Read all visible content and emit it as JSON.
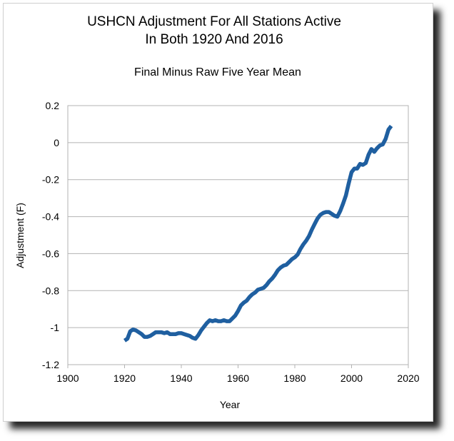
{
  "chart_data": {
    "type": "line",
    "title_lines": [
      "USHCN Adjustment For All Stations Active",
      "In Both 1920 And 2016"
    ],
    "subtitle": "Final Minus Raw Five Year Mean",
    "xlabel": "Year",
    "ylabel": "Adjustment (F)",
    "xlim": [
      1900,
      2020
    ],
    "ylim": [
      -1.2,
      0.2
    ],
    "xticks": [
      1900,
      1920,
      1940,
      1960,
      1980,
      2000,
      2020
    ],
    "yticks": [
      0.2,
      0,
      -0.2,
      -0.4,
      -0.6,
      -0.8,
      -1,
      -1.2
    ],
    "ytick_labels": [
      "0.2",
      "0",
      "-0.2",
      "-0.4",
      "-0.6",
      "-0.8",
      "-1",
      "-1.2"
    ],
    "grid": true,
    "legend": false,
    "series": [
      {
        "color": "#1f5fa0",
        "x": [
          1920,
          1921,
          1922,
          1923,
          1924,
          1925,
          1926,
          1927,
          1928,
          1929,
          1930,
          1931,
          1932,
          1933,
          1934,
          1935,
          1936,
          1937,
          1938,
          1939,
          1940,
          1941,
          1942,
          1943,
          1944,
          1945,
          1946,
          1947,
          1948,
          1949,
          1950,
          1951,
          1952,
          1953,
          1954,
          1955,
          1956,
          1957,
          1958,
          1959,
          1960,
          1961,
          1962,
          1963,
          1964,
          1965,
          1966,
          1967,
          1968,
          1969,
          1970,
          1971,
          1972,
          1973,
          1974,
          1975,
          1976,
          1977,
          1978,
          1979,
          1980,
          1981,
          1982,
          1983,
          1984,
          1985,
          1986,
          1987,
          1988,
          1989,
          1990,
          1991,
          1992,
          1993,
          1994,
          1995,
          1996,
          1997,
          1998,
          1999,
          2000,
          2001,
          2002,
          2003,
          2004,
          2005,
          2006,
          2007,
          2008,
          2009,
          2010,
          2011,
          2012,
          2013,
          2014
        ],
        "y": [
          -1.07,
          -1.06,
          -1.02,
          -1.01,
          -1.015,
          -1.025,
          -1.035,
          -1.05,
          -1.05,
          -1.045,
          -1.035,
          -1.025,
          -1.025,
          -1.025,
          -1.03,
          -1.025,
          -1.035,
          -1.035,
          -1.035,
          -1.03,
          -1.03,
          -1.035,
          -1.04,
          -1.045,
          -1.055,
          -1.06,
          -1.04,
          -1.015,
          -0.995,
          -0.975,
          -0.96,
          -0.965,
          -0.96,
          -0.965,
          -0.965,
          -0.96,
          -0.965,
          -0.965,
          -0.95,
          -0.935,
          -0.91,
          -0.88,
          -0.865,
          -0.855,
          -0.835,
          -0.82,
          -0.81,
          -0.795,
          -0.79,
          -0.785,
          -0.77,
          -0.75,
          -0.735,
          -0.715,
          -0.69,
          -0.675,
          -0.665,
          -0.66,
          -0.645,
          -0.63,
          -0.62,
          -0.605,
          -0.575,
          -0.55,
          -0.53,
          -0.505,
          -0.47,
          -0.44,
          -0.41,
          -0.39,
          -0.38,
          -0.375,
          -0.375,
          -0.385,
          -0.395,
          -0.4,
          -0.37,
          -0.33,
          -0.285,
          -0.22,
          -0.16,
          -0.14,
          -0.14,
          -0.115,
          -0.12,
          -0.11,
          -0.065,
          -0.035,
          -0.05,
          -0.03,
          -0.015,
          -0.01,
          0.02,
          0.07,
          0.09
        ]
      }
    ]
  }
}
